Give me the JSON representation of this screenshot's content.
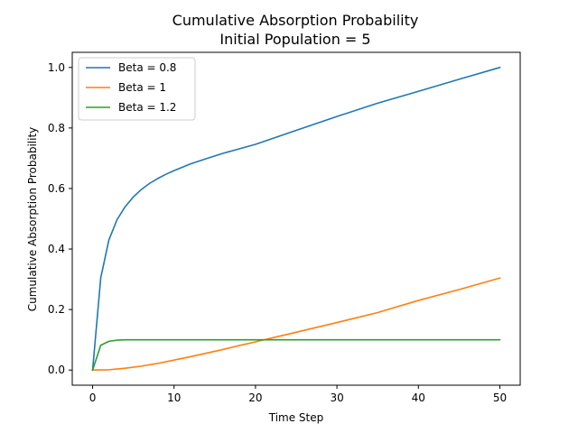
{
  "chart_data": {
    "type": "line",
    "title": "Cumulative Absorption Probability",
    "subtitle": "Initial Population = 5",
    "xlabel": "Time Step",
    "ylabel": "Cumulative Absorption Probability",
    "xlim": [
      -2.5,
      52.5
    ],
    "ylim": [
      -0.05,
      1.05
    ],
    "xticks": [
      0,
      10,
      20,
      30,
      40,
      50
    ],
    "xtick_labels": [
      "0",
      "10",
      "20",
      "30",
      "40",
      "50"
    ],
    "yticks": [
      0.0,
      0.2,
      0.4,
      0.6,
      0.8,
      1.0
    ],
    "ytick_labels": [
      "0.0",
      "0.2",
      "0.4",
      "0.6",
      "0.8",
      "1.0"
    ],
    "grid": false,
    "legend_position": "upper-left",
    "series": [
      {
        "name": "Beta = 0.8",
        "color": "#1f77b4",
        "x": [
          0,
          1,
          2,
          3,
          4,
          5,
          6,
          7,
          8,
          9,
          10,
          12,
          14,
          16,
          18,
          20,
          25,
          30,
          35,
          40,
          45,
          50
        ],
        "y": [
          0.0,
          0.305,
          0.43,
          0.497,
          0.54,
          0.572,
          0.597,
          0.617,
          0.633,
          0.647,
          0.659,
          0.681,
          0.699,
          0.716,
          0.731,
          0.746,
          0.792,
          0.838,
          0.882,
          0.921,
          0.961,
          1.0
        ]
      },
      {
        "name": "Beta = 1",
        "color": "#ff7f0e",
        "x": [
          0,
          2,
          4,
          6,
          8,
          10,
          12,
          14,
          16,
          18,
          20,
          22,
          25,
          30,
          35,
          40,
          45,
          50
        ],
        "y": [
          0.0,
          0.001,
          0.006,
          0.013,
          0.022,
          0.033,
          0.044,
          0.056,
          0.068,
          0.081,
          0.093,
          0.106,
          0.125,
          0.157,
          0.19,
          0.23,
          0.266,
          0.304
        ]
      },
      {
        "name": "Beta = 1.2",
        "color": "#2ca02c",
        "x": [
          0,
          1,
          2,
          3,
          4,
          5,
          6,
          8,
          10,
          20,
          30,
          40,
          50
        ],
        "y": [
          0.0,
          0.082,
          0.095,
          0.099,
          0.1,
          0.1,
          0.1,
          0.1,
          0.1,
          0.1,
          0.1,
          0.1,
          0.1
        ]
      }
    ]
  }
}
